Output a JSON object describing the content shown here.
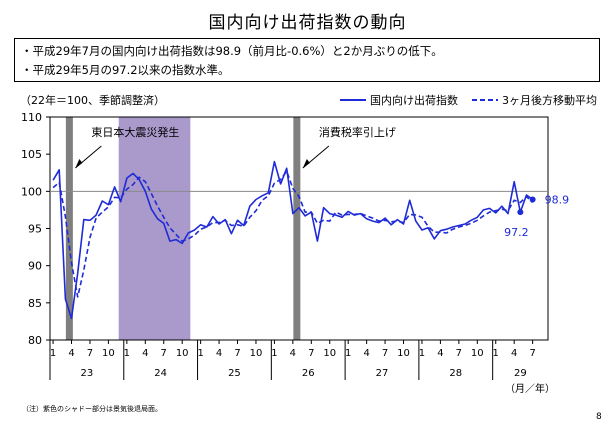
{
  "title": "国内向け出荷指数の動向",
  "summary": {
    "line1": "・平成29年7月の国内向け出荷指数は98.9（前月比-0.6%）と2か月ぶりの低下。",
    "line2": "・平成29年5月の97.2以来の指数水準。"
  },
  "unit_label": "（22年＝100、季節調整済）",
  "footnote": "（注）紫色のシャドー部分は景気後退局面。",
  "page_number": "8",
  "colors": {
    "series": "#1f2bd6",
    "recession": "#a99acb",
    "event_bar": "#7f7f7f",
    "reference": "#8a8a8a"
  },
  "chart_data": {
    "type": "line",
    "ylim": [
      80,
      110
    ],
    "yticks": [
      80,
      85,
      90,
      95,
      100,
      105,
      110
    ],
    "month_tick_labels": [
      "1",
      "4",
      "7",
      "10"
    ],
    "last_year_tick_labels": [
      "1",
      "4",
      "7"
    ],
    "years": [
      "23",
      "24",
      "25",
      "26",
      "27",
      "28",
      "29"
    ],
    "x_unit_label": "（月／年）",
    "reference_line": 100,
    "series": [
      {
        "name": "国内向け出荷指数",
        "style": "solid",
        "values": [
          101.5,
          102.9,
          85.5,
          82.9,
          89.0,
          96.2,
          96.1,
          96.8,
          98.7,
          98.2,
          100.6,
          98.6,
          101.8,
          102.4,
          101.6,
          100.0,
          97.6,
          96.3,
          95.7,
          93.3,
          93.5,
          93.0,
          94.4,
          94.8,
          95.5,
          95.2,
          96.6,
          95.6,
          96.2,
          94.3,
          96.1,
          95.4,
          98.0,
          98.9,
          99.4,
          99.8,
          104.0,
          101.0,
          103.1,
          97.0,
          97.8,
          96.7,
          97.2,
          93.3,
          97.8,
          97.0,
          96.8,
          96.5,
          97.3,
          96.8,
          97.0,
          96.3,
          96.0,
          95.8,
          96.4,
          95.5,
          96.2,
          95.6,
          98.8,
          96.0,
          94.8,
          95.1,
          93.6,
          94.7,
          94.9,
          95.2,
          95.4,
          95.6,
          96.1,
          96.5,
          97.5,
          97.7,
          97.1,
          98.0,
          97.0,
          101.3,
          97.2,
          99.5,
          98.9
        ]
      },
      {
        "name": "3ヶ月後方移動平均",
        "style": "dashed",
        "values": [
          100.5,
          101.2,
          96.6,
          90.4,
          85.8,
          89.4,
          93.8,
          96.4,
          97.2,
          97.9,
          99.2,
          99.1,
          100.3,
          100.9,
          101.9,
          101.3,
          99.7,
          98.0,
          96.5,
          95.1,
          94.2,
          93.3,
          93.6,
          94.1,
          94.9,
          95.2,
          95.8,
          95.8,
          96.1,
          95.4,
          95.5,
          95.3,
          96.5,
          97.4,
          98.8,
          99.4,
          101.1,
          101.6,
          102.7,
          100.4,
          99.3,
          97.2,
          97.2,
          95.7,
          96.1,
          96.0,
          97.2,
          96.8,
          96.9,
          96.9,
          97.0,
          96.7,
          96.4,
          96.0,
          96.1,
          95.9,
          96.0,
          95.8,
          96.9,
          96.8,
          96.5,
          95.3,
          94.5,
          94.5,
          94.4,
          94.9,
          95.2,
          95.4,
          95.7,
          96.1,
          96.7,
          97.2,
          97.4,
          97.6,
          97.4,
          98.8,
          98.5,
          99.3,
          98.5
        ]
      }
    ],
    "recession_shading": {
      "start_index": 11,
      "end_index": 22
    },
    "events": [
      {
        "label": "東日本大震災発生",
        "index": 2
      },
      {
        "label": "消費税率引上げ",
        "index": 39
      }
    ],
    "annotations": [
      {
        "text": "98.9",
        "index": 78,
        "value": 98.9
      },
      {
        "text": "97.2",
        "index": 76,
        "value": 97.2
      }
    ]
  }
}
